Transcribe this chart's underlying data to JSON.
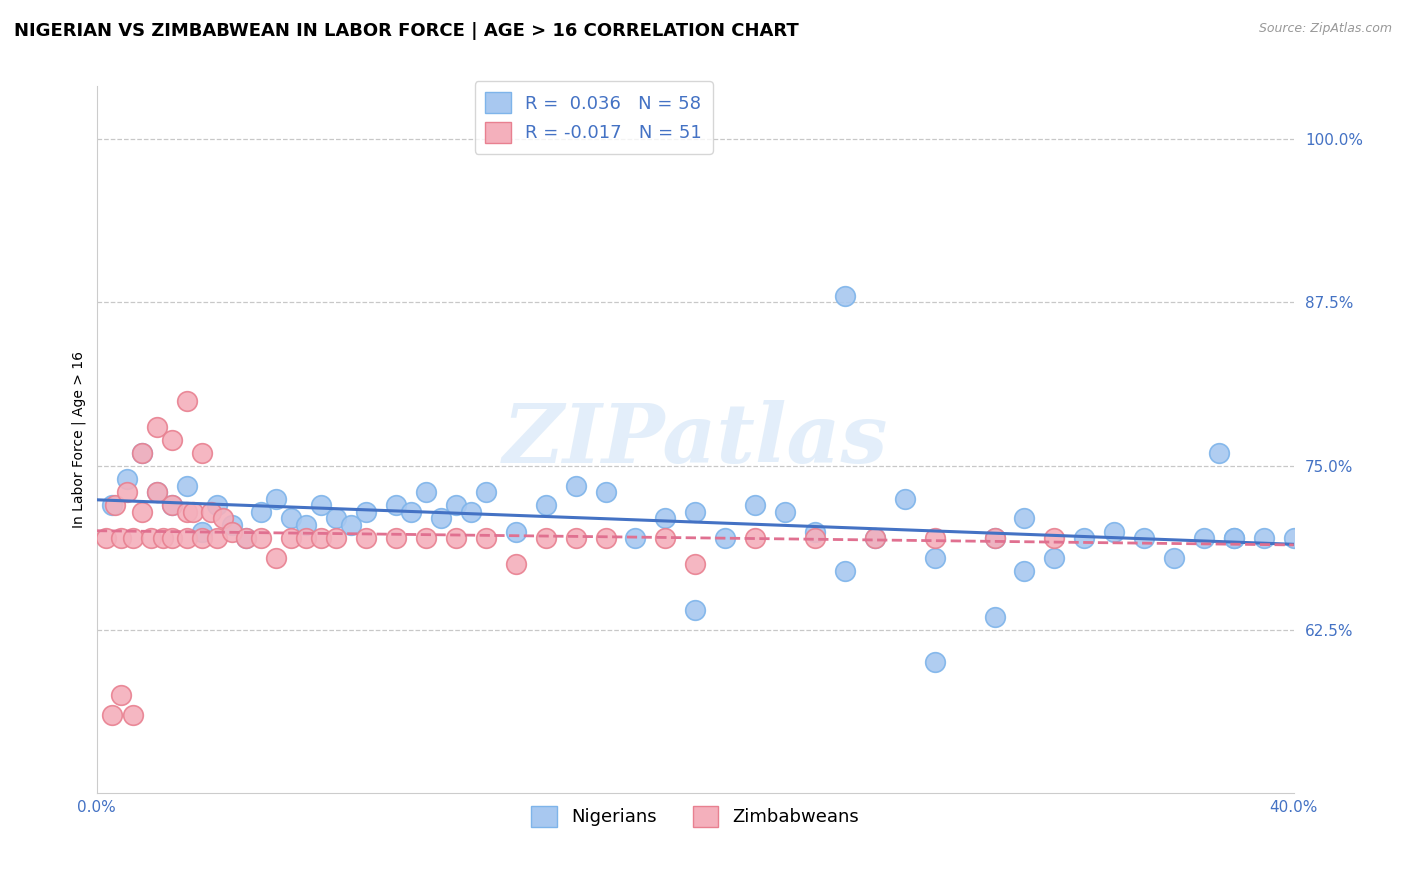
{
  "title": "NIGERIAN VS ZIMBABWEAN IN LABOR FORCE | AGE > 16 CORRELATION CHART",
  "source_text": "Source: ZipAtlas.com",
  "ylabel": "In Labor Force | Age > 16",
  "xlim": [
    0.0,
    0.4
  ],
  "ylim": [
    0.5,
    1.04
  ],
  "ytick_positions": [
    0.625,
    0.75,
    0.875,
    1.0
  ],
  "ytick_labels": [
    "62.5%",
    "75.0%",
    "87.5%",
    "100.0%"
  ],
  "xtick_positions": [
    0.0,
    0.05,
    0.1,
    0.15,
    0.2,
    0.25,
    0.3,
    0.35,
    0.4
  ],
  "xtick_labels": [
    "0.0%",
    "",
    "",
    "",
    "",
    "",
    "",
    "",
    "40.0%"
  ],
  "nigerian_R": 0.036,
  "nigerian_N": 58,
  "zimbabwean_R": -0.017,
  "zimbabwean_N": 51,
  "nigerian_color": "#a8c8f0",
  "nigerian_edge_color": "#7eb4ea",
  "zimbabwean_color": "#f4b0bc",
  "zimbabwean_edge_color": "#e88090",
  "nigerian_line_color": "#4472c4",
  "zimbabwean_line_color": "#e07090",
  "nigerian_scatter_x": [
    0.005,
    0.01,
    0.015,
    0.02,
    0.025,
    0.03,
    0.035,
    0.04,
    0.045,
    0.05,
    0.055,
    0.06,
    0.065,
    0.07,
    0.075,
    0.08,
    0.085,
    0.09,
    0.1,
    0.105,
    0.11,
    0.115,
    0.12,
    0.125,
    0.13,
    0.14,
    0.15,
    0.16,
    0.17,
    0.18,
    0.19,
    0.2,
    0.21,
    0.22,
    0.23,
    0.24,
    0.25,
    0.27,
    0.28,
    0.3,
    0.31,
    0.32,
    0.33,
    0.34,
    0.35,
    0.375,
    0.38,
    0.39,
    0.4,
    0.2,
    0.25,
    0.26,
    0.28,
    0.3,
    0.31,
    0.36,
    0.37,
    0.38
  ],
  "nigerian_scatter_y": [
    0.72,
    0.74,
    0.76,
    0.73,
    0.72,
    0.735,
    0.7,
    0.72,
    0.705,
    0.695,
    0.715,
    0.725,
    0.71,
    0.705,
    0.72,
    0.71,
    0.705,
    0.715,
    0.72,
    0.715,
    0.73,
    0.71,
    0.72,
    0.715,
    0.73,
    0.7,
    0.72,
    0.735,
    0.73,
    0.695,
    0.71,
    0.715,
    0.695,
    0.72,
    0.715,
    0.7,
    0.88,
    0.725,
    0.68,
    0.695,
    0.71,
    0.68,
    0.695,
    0.7,
    0.695,
    0.76,
    0.695,
    0.695,
    0.695,
    0.64,
    0.67,
    0.695,
    0.6,
    0.635,
    0.67,
    0.68,
    0.695,
    0.695
  ],
  "zimbabwean_scatter_x": [
    0.003,
    0.006,
    0.008,
    0.01,
    0.012,
    0.015,
    0.015,
    0.018,
    0.02,
    0.02,
    0.022,
    0.025,
    0.025,
    0.03,
    0.03,
    0.032,
    0.035,
    0.038,
    0.04,
    0.042,
    0.045,
    0.05,
    0.055,
    0.06,
    0.065,
    0.07,
    0.075,
    0.08,
    0.09,
    0.1,
    0.11,
    0.12,
    0.13,
    0.14,
    0.15,
    0.16,
    0.17,
    0.19,
    0.2,
    0.22,
    0.24,
    0.26,
    0.28,
    0.3,
    0.32,
    0.025,
    0.03,
    0.035,
    0.005,
    0.008,
    0.012
  ],
  "zimbabwean_scatter_y": [
    0.695,
    0.72,
    0.695,
    0.73,
    0.695,
    0.76,
    0.715,
    0.695,
    0.78,
    0.73,
    0.695,
    0.72,
    0.695,
    0.715,
    0.695,
    0.715,
    0.695,
    0.715,
    0.695,
    0.71,
    0.7,
    0.695,
    0.695,
    0.68,
    0.695,
    0.695,
    0.695,
    0.695,
    0.695,
    0.695,
    0.695,
    0.695,
    0.695,
    0.675,
    0.695,
    0.695,
    0.695,
    0.695,
    0.675,
    0.695,
    0.695,
    0.695,
    0.695,
    0.695,
    0.695,
    0.77,
    0.8,
    0.76,
    0.56,
    0.575,
    0.56
  ],
  "watermark_text": "ZIPatlas",
  "background_color": "#ffffff",
  "grid_color": "#c8c8c8",
  "title_fontsize": 13,
  "axis_label_fontsize": 10,
  "tick_fontsize": 11,
  "tick_color": "#4472c4"
}
